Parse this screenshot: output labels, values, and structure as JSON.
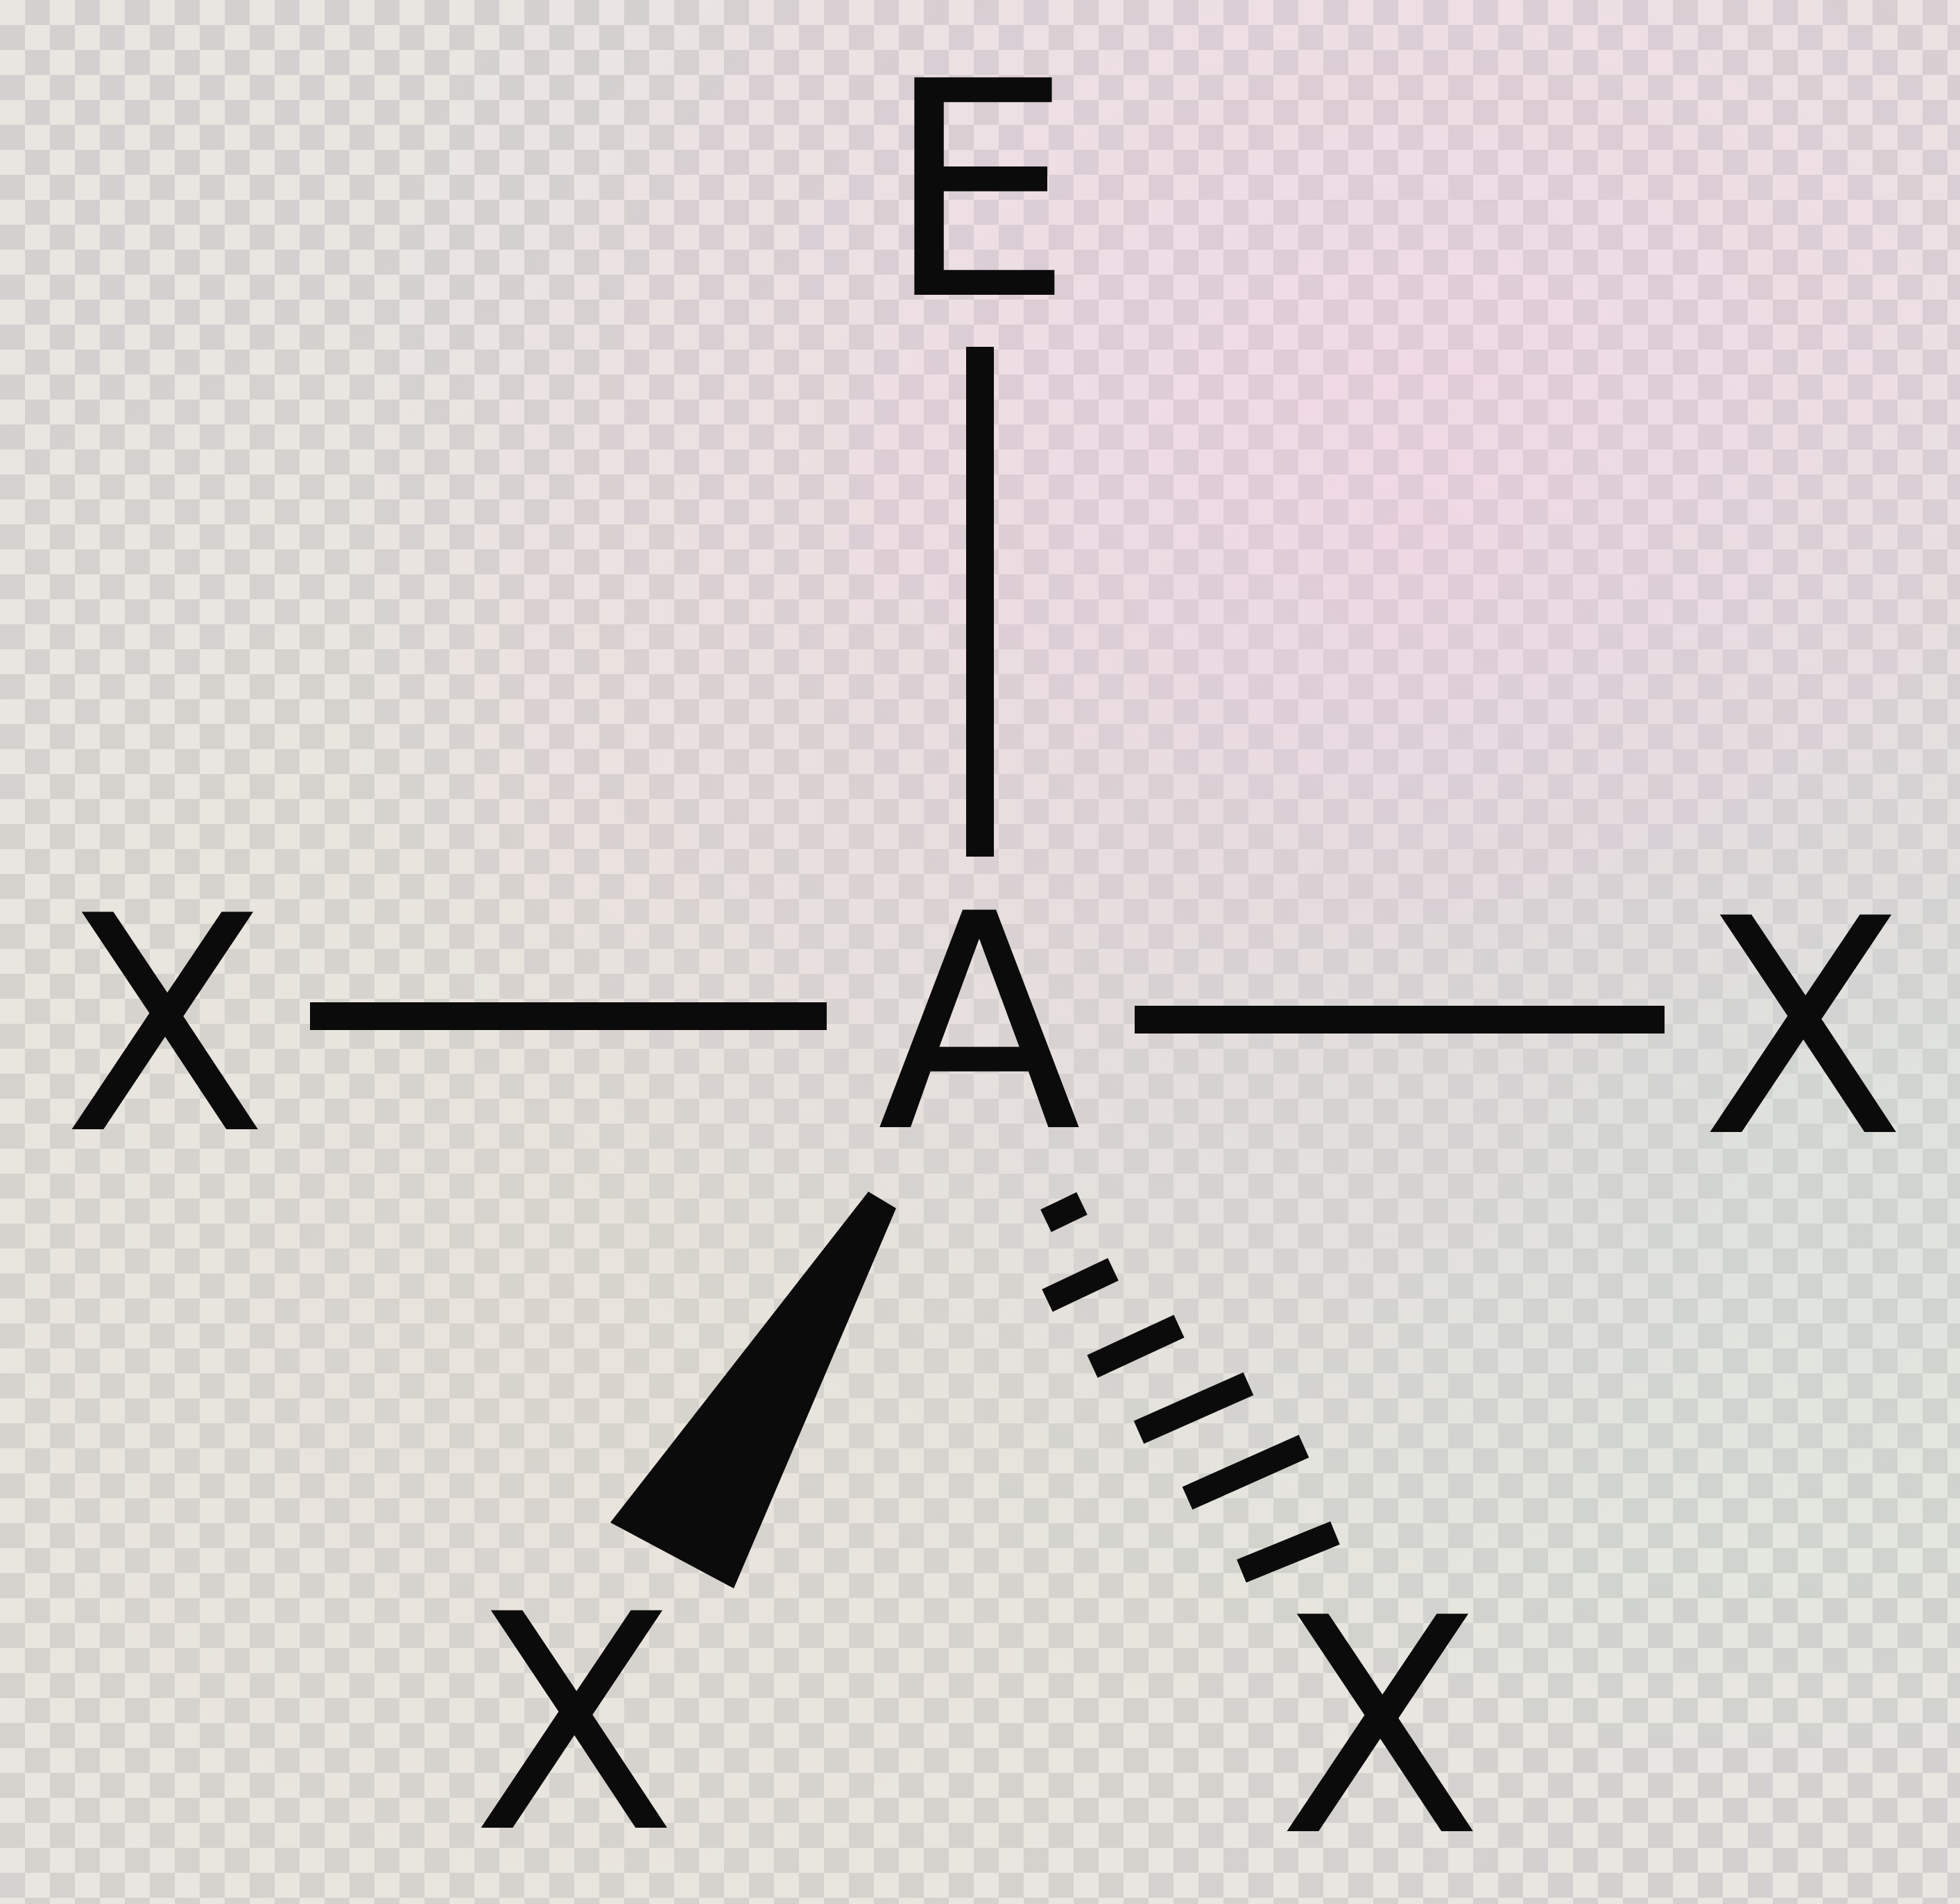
{
  "diagram": {
    "type": "molecular-geometry",
    "atoms": {
      "lone_pair": "E",
      "central": "A",
      "left": "X",
      "right": "X",
      "wedge": "X",
      "dash": "X"
    },
    "bonds": [
      {
        "from": "central",
        "to": "lone_pair",
        "style": "solid"
      },
      {
        "from": "central",
        "to": "left",
        "style": "solid"
      },
      {
        "from": "central",
        "to": "right",
        "style": "solid"
      },
      {
        "from": "central",
        "to": "wedge",
        "style": "wedge"
      },
      {
        "from": "central",
        "to": "dash",
        "style": "hashed"
      }
    ],
    "colors": {
      "ink": "#0b0b0b"
    }
  }
}
